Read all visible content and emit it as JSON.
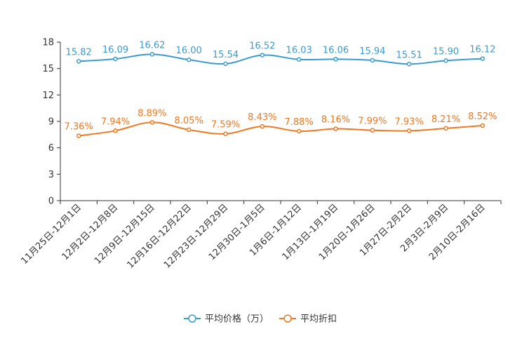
{
  "chart_data": {
    "type": "line",
    "title": "",
    "xlabel": "",
    "ylabel": "",
    "ylim": [
      0,
      18
    ],
    "yticks": [
      0,
      3,
      6,
      9,
      12,
      15,
      18
    ],
    "grid": false,
    "legend_position": "bottom",
    "categories": [
      "11月25日-12月1日",
      "12月2日-12月8日",
      "12月9日-12月15日",
      "12月16日-12月22日",
      "12月23日-12月29日",
      "12月30日-1月5日",
      "1月6日-1月12日",
      "1月13日-1月19日",
      "1月20日-1月26日",
      "1月27日-2月2日",
      "2月3日-2月9日",
      "2月10日-2月16日"
    ],
    "series": [
      {
        "name": "平均价格（万）",
        "color": "#3a9bd0",
        "values": [
          15.82,
          16.09,
          16.62,
          16.0,
          15.54,
          16.52,
          16.03,
          16.06,
          15.94,
          15.51,
          15.9,
          16.12
        ],
        "labels": [
          "15.82",
          "16.09",
          "16.62",
          "16.00",
          "15.54",
          "16.52",
          "16.03",
          "16.06",
          "15.94",
          "15.51",
          "15.90",
          "16.12"
        ]
      },
      {
        "name": "平均折扣",
        "color": "#f07820",
        "values": [
          7.36,
          7.94,
          8.89,
          8.05,
          7.59,
          8.43,
          7.88,
          8.16,
          7.99,
          7.93,
          8.21,
          8.52
        ],
        "labels": [
          "7.36%",
          "7.94%",
          "8.89%",
          "8.05%",
          "7.59%",
          "8.43%",
          "7.88%",
          "8.16%",
          "7.99%",
          "7.93%",
          "8.21%",
          "8.52%"
        ]
      }
    ]
  }
}
